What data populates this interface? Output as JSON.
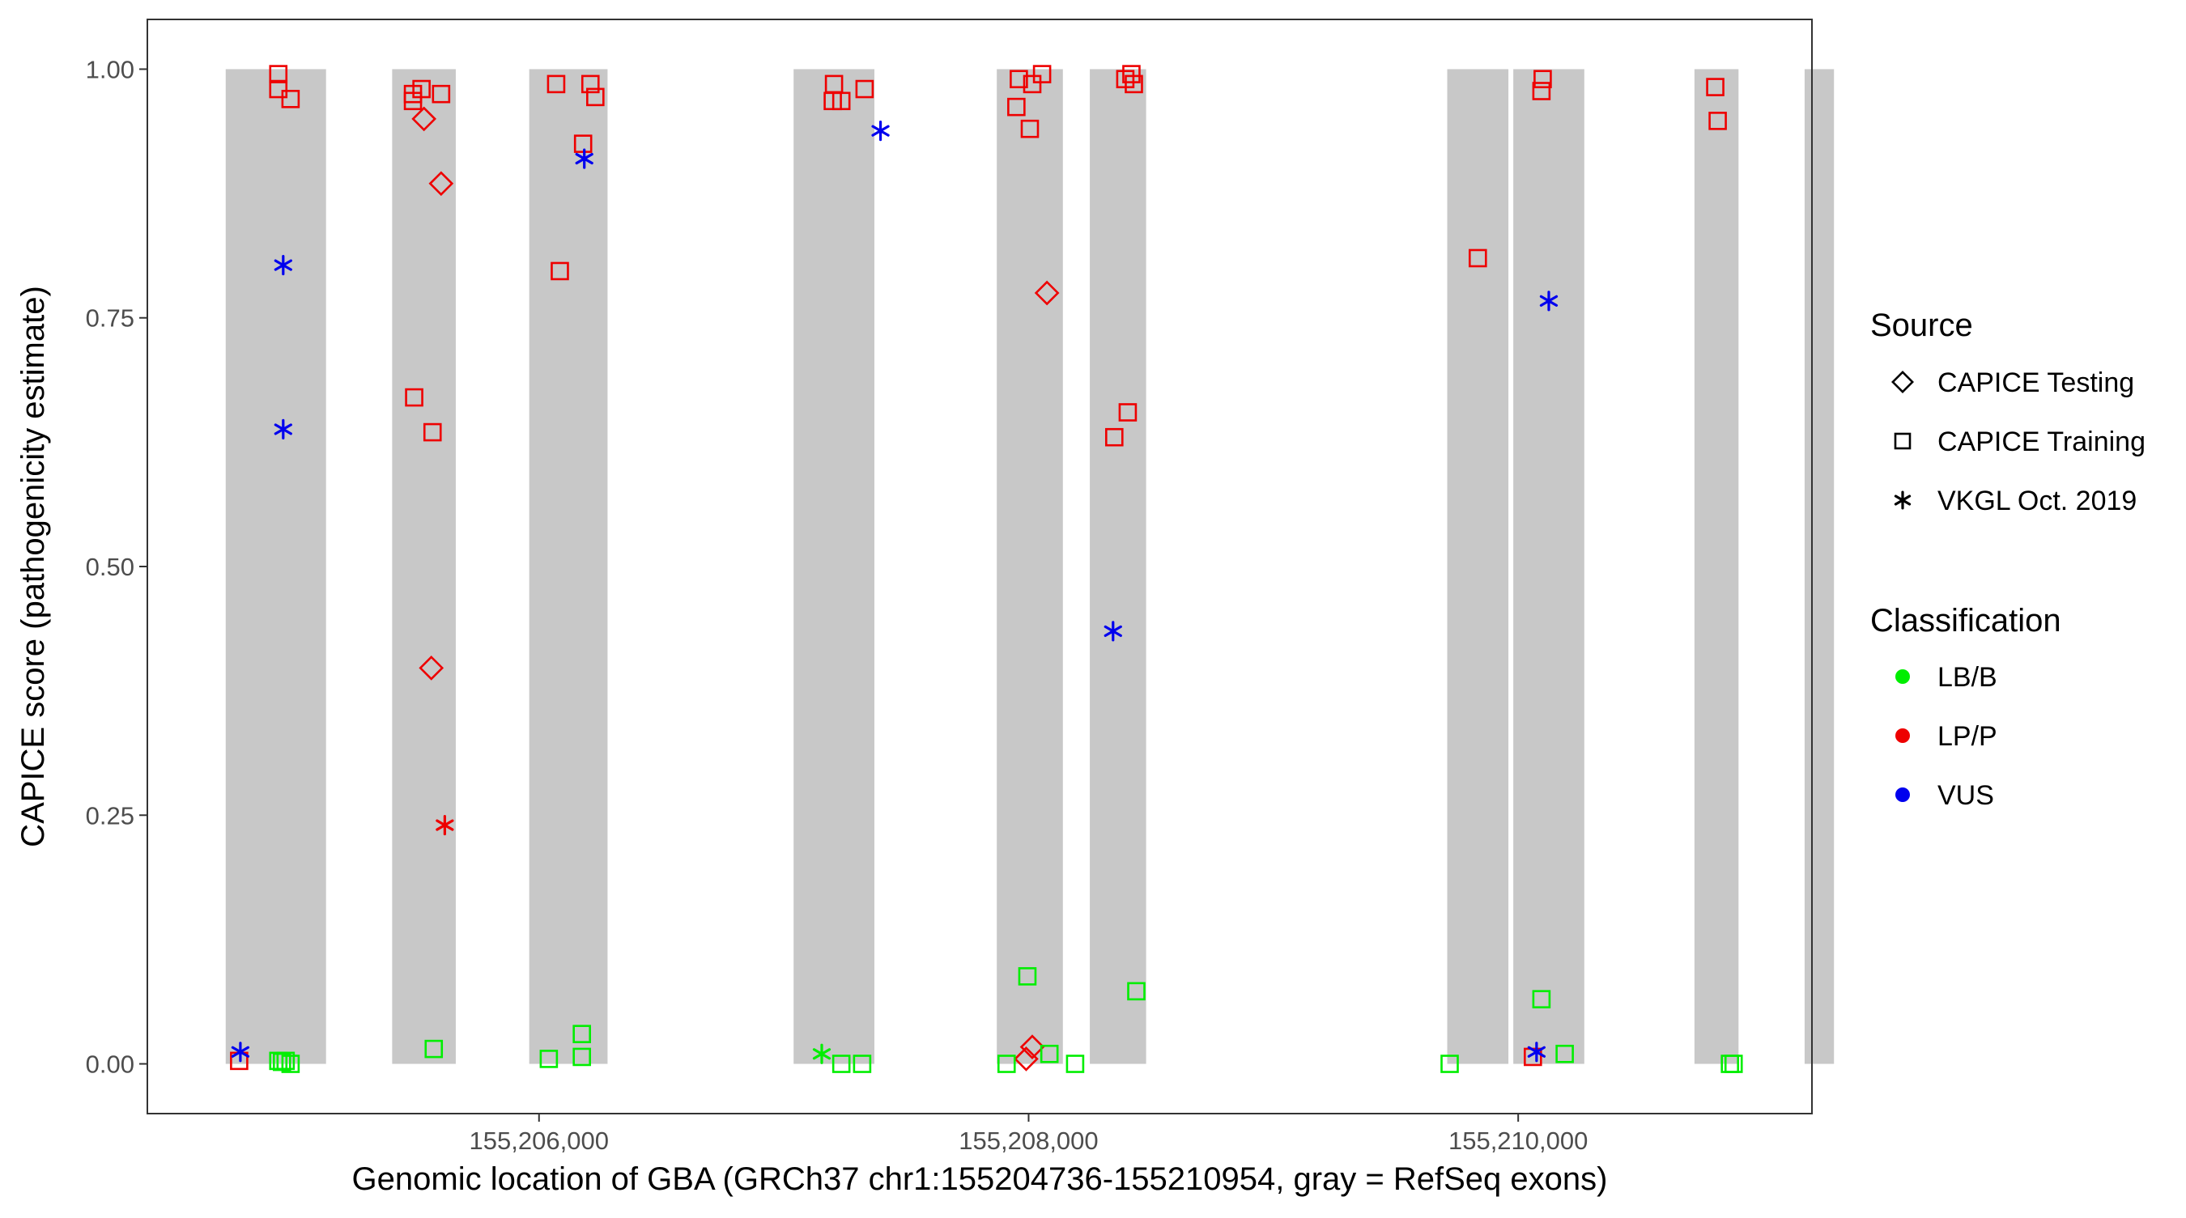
{
  "chart_data": {
    "type": "scatter",
    "title": "",
    "xlabel": "Genomic location of GBA (GRCh37 chr1:155204736-155210954, gray = RefSeq exons)",
    "ylabel": "CAPICE score (pathogenicity estimate)",
    "xlim": [
      155204400,
      155211200
    ],
    "ylim": [
      -0.05,
      1.05
    ],
    "grid": false,
    "x_ticks": [
      155206000,
      155208000,
      155210000
    ],
    "x_tick_labels": [
      "155,206,000",
      "155,208,000",
      "155,210,000"
    ],
    "y_ticks": [
      0,
      0.25,
      0.5,
      0.75,
      1
    ],
    "y_tick_labels": [
      "0.00",
      "0.25",
      "0.50",
      "0.75",
      "1.00"
    ],
    "exons": [
      [
        155204720,
        155205130
      ],
      [
        155205400,
        155205660
      ],
      [
        155205960,
        155206280
      ],
      [
        155207040,
        155207370
      ],
      [
        155207870,
        155208140
      ],
      [
        155208250,
        155208480
      ],
      [
        155209710,
        155209960
      ],
      [
        155209980,
        155210270
      ],
      [
        155210720,
        155210900
      ],
      [
        155211170,
        155211290
      ]
    ],
    "legend": {
      "position": "right",
      "source_title": "Source",
      "source_items": [
        {
          "label": "CAPICE Testing",
          "shape": "diamond"
        },
        {
          "label": "CAPICE Training",
          "shape": "square"
        },
        {
          "label": "VKGL Oct. 2019",
          "shape": "asterisk"
        }
      ],
      "class_title": "Classification",
      "class_items": [
        {
          "label": "LB/B",
          "color": "#00ee00"
        },
        {
          "label": "LP/P",
          "color": "#ee0000"
        },
        {
          "label": "VUS",
          "color": "#0000ee"
        }
      ]
    },
    "series": [
      {
        "source": "CAPICE Training",
        "classification": "LP/P",
        "shape": "square",
        "color": "#ee0000",
        "points": [
          [
            155204935,
            0.995
          ],
          [
            155204935,
            0.98
          ],
          [
            155204985,
            0.97
          ],
          [
            155204775,
            0.003
          ],
          [
            155205485,
            0.975
          ],
          [
            155205485,
            0.968
          ],
          [
            155205520,
            0.98
          ],
          [
            155205600,
            0.975
          ],
          [
            155205490,
            0.67
          ],
          [
            155205565,
            0.635
          ],
          [
            155206070,
            0.985
          ],
          [
            155206210,
            0.985
          ],
          [
            155206230,
            0.972
          ],
          [
            155206085,
            0.797
          ],
          [
            155206180,
            0.925
          ],
          [
            155207205,
            0.985
          ],
          [
            155207200,
            0.968
          ],
          [
            155207235,
            0.968
          ],
          [
            155207330,
            0.98
          ],
          [
            155207960,
            0.99
          ],
          [
            155207950,
            0.962
          ],
          [
            155208015,
            0.985
          ],
          [
            155208055,
            0.995
          ],
          [
            155208005,
            0.94
          ],
          [
            155208395,
            0.99
          ],
          [
            155208420,
            0.995
          ],
          [
            155208430,
            0.985
          ],
          [
            155208350,
            0.63
          ],
          [
            155208405,
            0.655
          ],
          [
            155209835,
            0.81
          ],
          [
            155210100,
            0.99
          ],
          [
            155210095,
            0.978
          ],
          [
            155210060,
            0.007
          ],
          [
            155210805,
            0.982
          ],
          [
            155210815,
            0.948
          ]
        ]
      },
      {
        "source": "CAPICE Testing",
        "classification": "LP/P",
        "shape": "diamond",
        "color": "#ee0000",
        "points": [
          [
            155205530,
            0.95
          ],
          [
            155205600,
            0.885
          ],
          [
            155205560,
            0.398
          ],
          [
            155208075,
            0.775
          ],
          [
            155208015,
            0.017
          ],
          [
            155207990,
            0.005
          ]
        ]
      },
      {
        "source": "VKGL Oct. 2019",
        "classification": "LP/P",
        "shape": "asterisk",
        "color": "#ee0000",
        "points": [
          [
            155205615,
            0.24
          ]
        ]
      },
      {
        "source": "VKGL Oct. 2019",
        "classification": "VUS",
        "shape": "asterisk",
        "color": "#0000ee",
        "points": [
          [
            155204955,
            0.803
          ],
          [
            155204955,
            0.638
          ],
          [
            155204780,
            0.012
          ],
          [
            155206185,
            0.91
          ],
          [
            155207395,
            0.938
          ],
          [
            155208345,
            0.435
          ],
          [
            155210125,
            0.767
          ],
          [
            155210075,
            0.012
          ]
        ]
      },
      {
        "source": "VKGL Oct. 2019",
        "classification": "LB/B",
        "shape": "asterisk",
        "color": "#00ee00",
        "points": [
          [
            155207155,
            0.01
          ]
        ]
      },
      {
        "source": "CAPICE Training",
        "classification": "LB/B",
        "shape": "square",
        "color": "#00ee00",
        "points": [
          [
            155204935,
            0.003
          ],
          [
            155204965,
            0.003
          ],
          [
            155204985,
            0.0
          ],
          [
            155204950,
            0.002
          ],
          [
            155205570,
            0.015
          ],
          [
            155206040,
            0.005
          ],
          [
            155206175,
            0.007
          ],
          [
            155206175,
            0.03
          ],
          [
            155207235,
            0.0
          ],
          [
            155207320,
            0.0
          ],
          [
            155207910,
            0.0
          ],
          [
            155207995,
            0.088
          ],
          [
            155208085,
            0.01
          ],
          [
            155208190,
            0.0
          ],
          [
            155208440,
            0.073
          ],
          [
            155209720,
            0.0
          ],
          [
            155210095,
            0.065
          ],
          [
            155210190,
            0.01
          ],
          [
            155210865,
            0.0
          ],
          [
            155210880,
            0.0
          ]
        ]
      }
    ]
  }
}
